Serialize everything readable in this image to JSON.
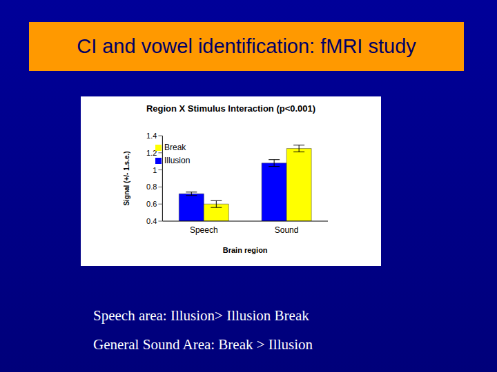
{
  "title": "CI and vowel identification: fMRI study",
  "chart_data": {
    "type": "bar",
    "title": "Region X Stimulus Interaction (p<0.001)",
    "x_label": "Brain region",
    "y_label": "Signal (+/- 1.s.e.)",
    "categories": [
      "Speech",
      "Sound"
    ],
    "series": [
      {
        "name": "Illusion",
        "color": "#0000ff",
        "values": [
          0.72,
          1.08
        ],
        "errors": [
          0.02,
          0.04
        ]
      },
      {
        "name": "Break",
        "color": "#ffff00",
        "values": [
          0.6,
          1.25
        ],
        "errors": [
          0.04,
          0.04
        ]
      }
    ],
    "ylim": [
      0.4,
      1.4
    ],
    "yticks": [
      0.4,
      0.6,
      0.8,
      1,
      1.2,
      1.4
    ],
    "legend": "upper left",
    "grid": false
  },
  "notes": [
    "Speech area: Illusion> Illusion Break",
    "General Sound Area: Break > Illusion"
  ]
}
